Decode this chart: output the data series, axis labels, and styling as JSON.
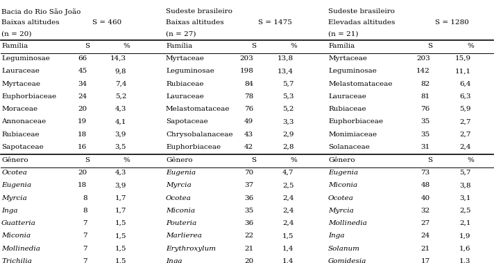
{
  "header1_line1": "Bacia do Rio São João",
  "header1_line2": "Baixas altitudes",
  "header1_line3": "(n = 20)",
  "header1_s": "S = 460",
  "header2_line1": "Sudeste brasileiro",
  "header2_line2": "Baixas altitudes",
  "header2_line3": "(n = 27)",
  "header2_s": "S = 1475",
  "header3_line1": "Sudeste brasileiro",
  "header3_line2": "Elevadas altitudes",
  "header3_line3": "(n = 21)",
  "header3_s": "S = 1280",
  "col1_familia_header": [
    "Família",
    "S",
    "%"
  ],
  "col1_familias": [
    [
      "Leguminosae",
      "66",
      "14,3"
    ],
    [
      "Lauraceae",
      "45",
      "9,8"
    ],
    [
      "Myrtaceae",
      "34",
      "7,4"
    ],
    [
      "Euphorbiaceae",
      "24",
      "5,2"
    ],
    [
      "Moraceae",
      "20",
      "4,3"
    ],
    [
      "Annonaceae",
      "19",
      "4,1"
    ],
    [
      "Rubiaceae",
      "18",
      "3,9"
    ],
    [
      "Sapotaceae",
      "16",
      "3,5"
    ]
  ],
  "col1_genero_header": [
    "Gênero",
    "S",
    "%"
  ],
  "col1_generos": [
    [
      "Ocotea",
      "20",
      "4,3"
    ],
    [
      "Eugenia",
      "18",
      "3,9"
    ],
    [
      "Myrcia",
      "8",
      "1,7"
    ],
    [
      "Inga",
      "8",
      "1,7"
    ],
    [
      "Guatteria",
      "7",
      "1,5"
    ],
    [
      "Miconia",
      "7",
      "1,5"
    ],
    [
      "Mollinedia",
      "7",
      "1,5"
    ],
    [
      "Trichilia",
      "7",
      "1,5"
    ]
  ],
  "col2_familia_header": [
    "Família",
    "S",
    "%"
  ],
  "col2_familias": [
    [
      "Myrtaceae",
      "203",
      "13,8"
    ],
    [
      "Leguminosae",
      "198",
      "13,4"
    ],
    [
      "Rubiaceae",
      "84",
      "5,7"
    ],
    [
      "Lauraceae",
      "78",
      "5,3"
    ],
    [
      "Melastomataceae",
      "76",
      "5,2"
    ],
    [
      "Sapotaceae",
      "49",
      "3,3"
    ],
    [
      "Chrysobalanaceae",
      "43",
      "2,9"
    ],
    [
      "Euphorbiaceae",
      "42",
      "2,8"
    ]
  ],
  "col2_genero_header": [
    "Gênero",
    "S",
    "%"
  ],
  "col2_generos": [
    [
      "Eugenia",
      "70",
      "4,7"
    ],
    [
      "Myrcia",
      "37",
      "2,5"
    ],
    [
      "Ocotea",
      "36",
      "2,4"
    ],
    [
      "Miconia",
      "35",
      "2,4"
    ],
    [
      "Pouteria",
      "36",
      "2,4"
    ],
    [
      "Marlierea",
      "22",
      "1,5"
    ],
    [
      "Erythroxylum",
      "21",
      "1,4"
    ],
    [
      "Inga",
      "20",
      "1,4"
    ]
  ],
  "col3_familia_header": [
    "Família",
    "S",
    "%"
  ],
  "col3_familias": [
    [
      "Myrtaceae",
      "203",
      "15,9"
    ],
    [
      "Leguminosae",
      "142",
      "11,1"
    ],
    [
      "Melastomataceae",
      "82",
      "6,4"
    ],
    [
      "Lauraceae",
      "81",
      "6,3"
    ],
    [
      "Rubiaceae",
      "76",
      "5,9"
    ],
    [
      "Euphorbiaceae",
      "35",
      "2,7"
    ],
    [
      "Monimiaceae",
      "35",
      "2,7"
    ],
    [
      "Solanaceae",
      "31",
      "2,4"
    ]
  ],
  "col3_genero_header": [
    "Gênero",
    "S",
    "%"
  ],
  "col3_generos": [
    [
      "Eugenia",
      "73",
      "5,7"
    ],
    [
      "Miconia",
      "48",
      "3,8"
    ],
    [
      "Ocotea",
      "40",
      "3,1"
    ],
    [
      "Myrcia",
      "32",
      "2,5"
    ],
    [
      "Mollinedia",
      "27",
      "2,1"
    ],
    [
      "Inga",
      "24",
      "1,9"
    ],
    [
      "Solanum",
      "21",
      "1,6"
    ],
    [
      "Gomidesia",
      "17",
      "1,3"
    ]
  ],
  "bg_color": "#ffffff",
  "text_color": "#000000",
  "font_size": 7.5
}
